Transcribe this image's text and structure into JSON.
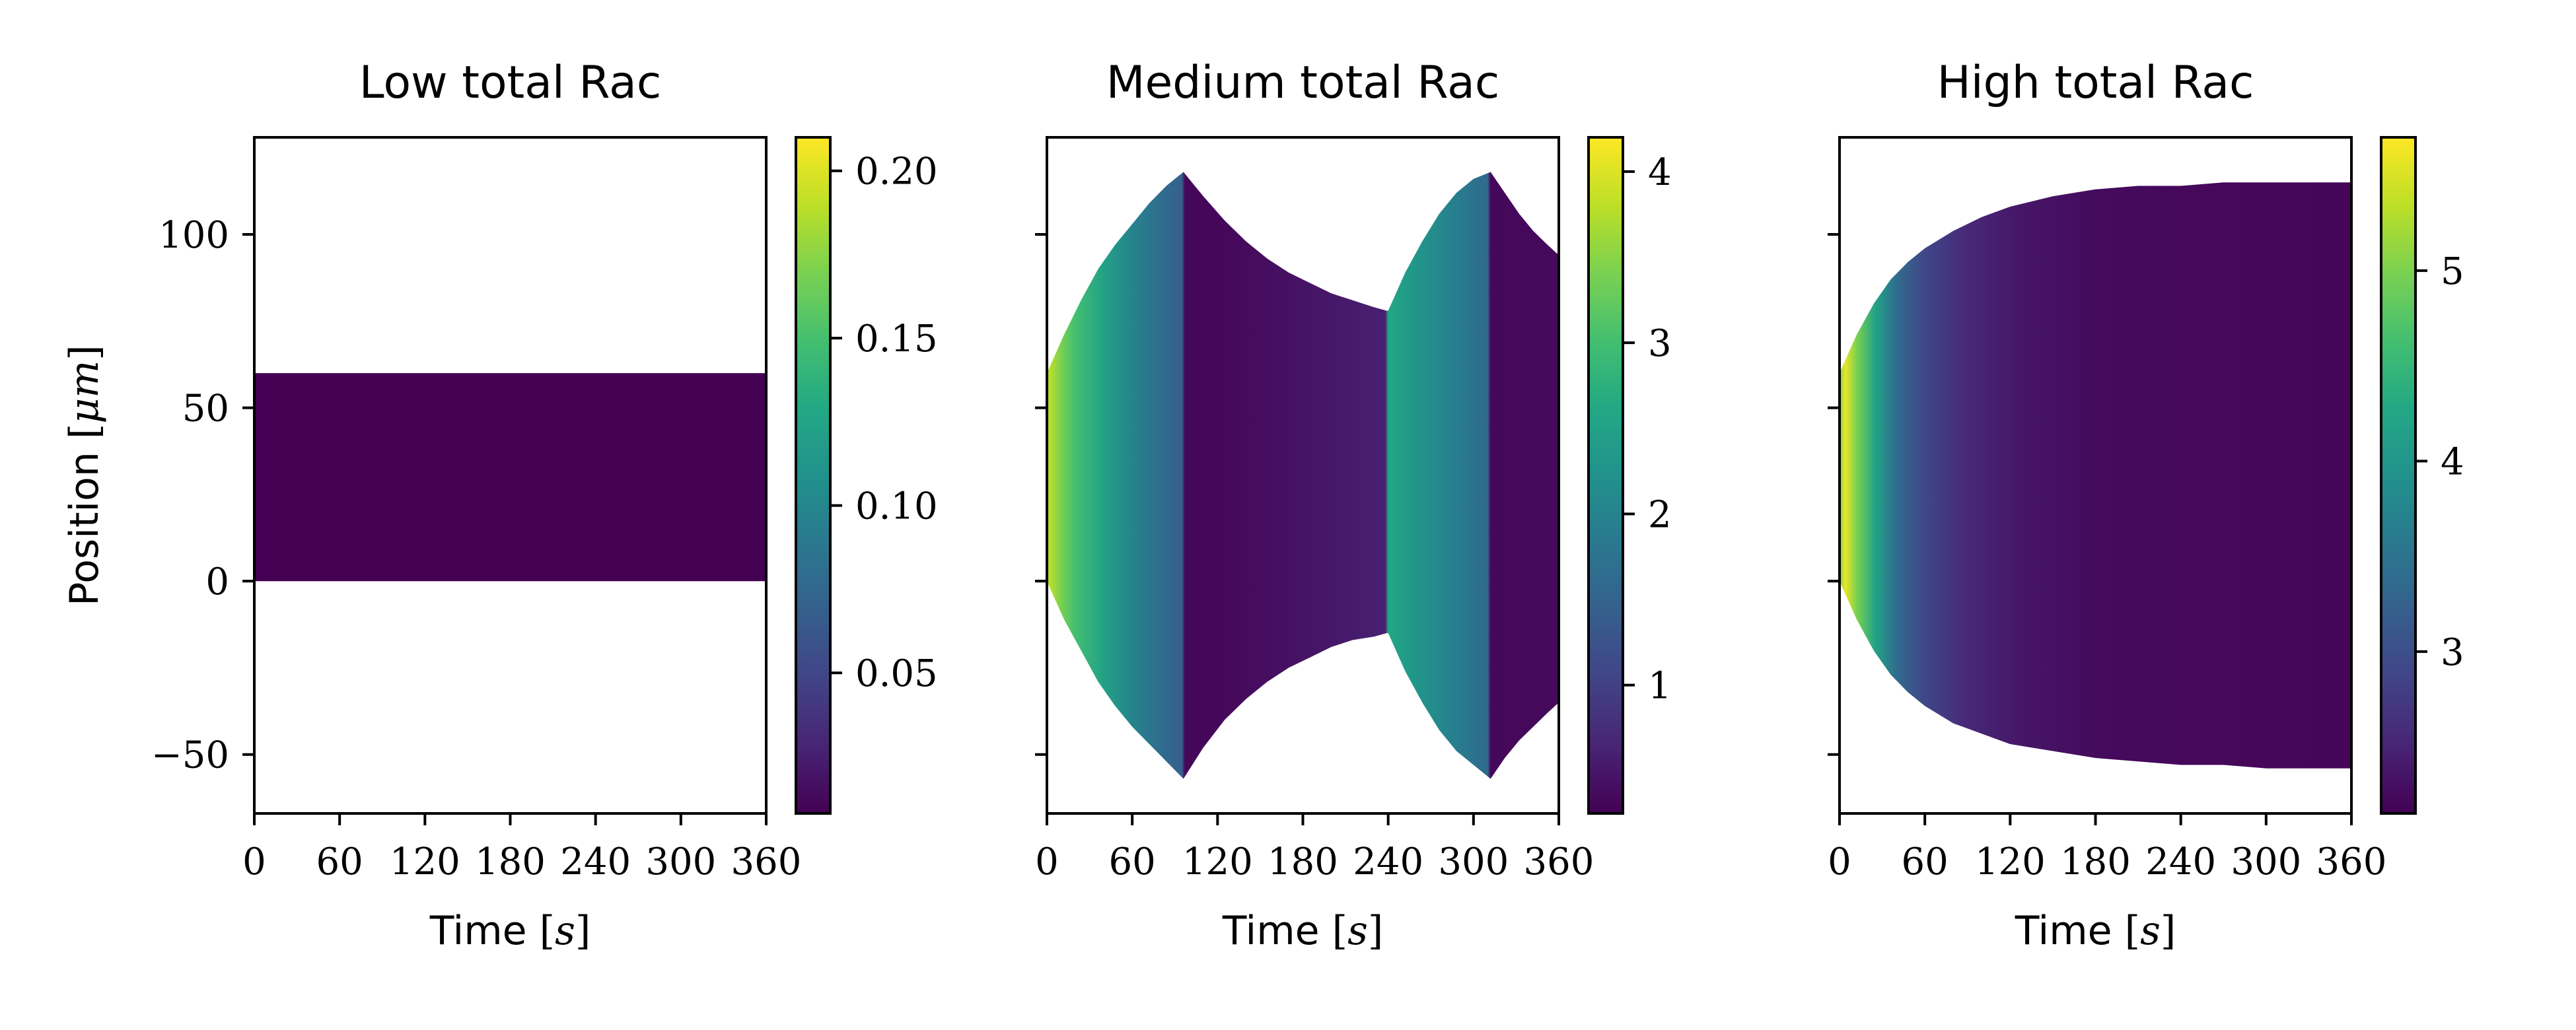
{
  "chart_data": [
    {
      "type": "heatmap",
      "title": "Low total Rac",
      "xlabel": "Time [s]",
      "ylabel": "Position [μm]",
      "xlim": [
        0,
        360
      ],
      "ylim": [
        -67,
        128
      ],
      "x_ticks": [
        0,
        60,
        120,
        180,
        240,
        300,
        360
      ],
      "y_ticks": [
        -50,
        0,
        50,
        100
      ],
      "y_tick_labels": [
        "−50",
        "0",
        "50",
        "100"
      ],
      "show_y_tick_labels": true,
      "colormap": "viridis",
      "colorbar": {
        "min": 0.008,
        "max": 0.21,
        "ticks": [
          0.05,
          0.1,
          0.15,
          0.2
        ],
        "tick_labels": [
          "0.05",
          "0.10",
          "0.15",
          "0.20"
        ]
      },
      "boundary": {
        "t": [
          0,
          60,
          120,
          180,
          240,
          300,
          360
        ],
        "lower": [
          0,
          0,
          0,
          0,
          0,
          0,
          0
        ],
        "upper": [
          60,
          60,
          60,
          60,
          60,
          60,
          60
        ]
      },
      "color_profile": {
        "t": [
          0,
          360
        ],
        "value": [
          0.008,
          0.008
        ]
      }
    },
    {
      "type": "heatmap",
      "title": "Medium total Rac",
      "xlabel": "Time [s]",
      "ylabel": "",
      "xlim": [
        0,
        360
      ],
      "ylim": [
        -67,
        128
      ],
      "x_ticks": [
        0,
        60,
        120,
        180,
        240,
        300,
        360
      ],
      "y_ticks": [
        -50,
        0,
        50,
        100
      ],
      "y_tick_labels": [
        "−50",
        "0",
        "50",
        "100"
      ],
      "show_y_tick_labels": false,
      "colormap": "viridis",
      "colorbar": {
        "min": 0.25,
        "max": 4.2,
        "ticks": [
          1,
          2,
          3,
          4
        ],
        "tick_labels": [
          "1",
          "2",
          "3",
          "4"
        ]
      },
      "boundary": {
        "t": [
          0,
          12,
          24,
          36,
          48,
          60,
          72,
          84,
          96,
          110,
          125,
          140,
          155,
          170,
          185,
          200,
          215,
          230,
          239,
          240,
          252,
          264,
          276,
          288,
          300,
          312,
          322,
          332,
          342,
          352,
          360
        ],
        "lower": [
          0,
          -11,
          -20,
          -29,
          -36,
          -42,
          -47,
          -52,
          -57,
          -48,
          -40,
          -34,
          -29,
          -25,
          -22,
          -19,
          -17,
          -16,
          -15,
          -15,
          -26,
          -35,
          -43,
          -49,
          -53,
          -57,
          -51,
          -46,
          -42,
          -38,
          -35
        ],
        "upper": [
          60,
          71,
          81,
          90,
          97,
          103,
          109,
          114,
          118,
          111,
          104,
          98,
          93,
          89,
          86,
          83,
          81,
          79,
          78,
          78,
          89,
          98,
          106,
          112,
          116,
          118,
          112,
          106,
          101,
          97,
          94
        ]
      },
      "color_profile": {
        "t": [
          0,
          2,
          10,
          20,
          40,
          60,
          80,
          95,
          97,
          120,
          180,
          238,
          240,
          260,
          290,
          310,
          312,
          360
        ],
        "value": [
          3.5,
          3.8,
          3.4,
          3.0,
          2.5,
          2.0,
          1.65,
          1.45,
          0.32,
          0.32,
          0.45,
          0.6,
          2.6,
          2.3,
          1.9,
          1.6,
          0.32,
          0.35
        ]
      }
    },
    {
      "type": "heatmap",
      "title": "High total Rac",
      "xlabel": "Time [s]",
      "ylabel": "",
      "xlim": [
        0,
        360
      ],
      "ylim": [
        -67,
        128
      ],
      "x_ticks": [
        0,
        60,
        120,
        180,
        240,
        300,
        360
      ],
      "y_ticks": [
        -50,
        0,
        50,
        100
      ],
      "y_tick_labels": [
        "−50",
        "0",
        "50",
        "100"
      ],
      "show_y_tick_labels": false,
      "colormap": "viridis",
      "colorbar": {
        "min": 2.15,
        "max": 5.7,
        "ticks": [
          3,
          4,
          5
        ],
        "tick_labels": [
          "3",
          "4",
          "5"
        ]
      },
      "boundary": {
        "t": [
          0,
          12,
          24,
          36,
          48,
          60,
          80,
          100,
          120,
          150,
          180,
          210,
          240,
          270,
          300,
          330,
          360
        ],
        "lower": [
          0,
          -11,
          -20,
          -27,
          -32,
          -36,
          -41,
          -44,
          -47,
          -49,
          -51,
          -52,
          -53,
          -53,
          -54,
          -54,
          -54
        ],
        "upper": [
          60,
          71,
          80,
          87,
          92,
          96,
          101,
          105,
          108,
          111,
          113,
          114,
          114,
          115,
          115,
          115,
          115
        ]
      },
      "color_profile": {
        "t": [
          0,
          4,
          12,
          25,
          40,
          60,
          90,
          130,
          180,
          250,
          360
        ],
        "value": [
          5.0,
          5.6,
          5.0,
          4.2,
          3.4,
          2.9,
          2.55,
          2.35,
          2.25,
          2.22,
          2.2
        ]
      }
    }
  ]
}
